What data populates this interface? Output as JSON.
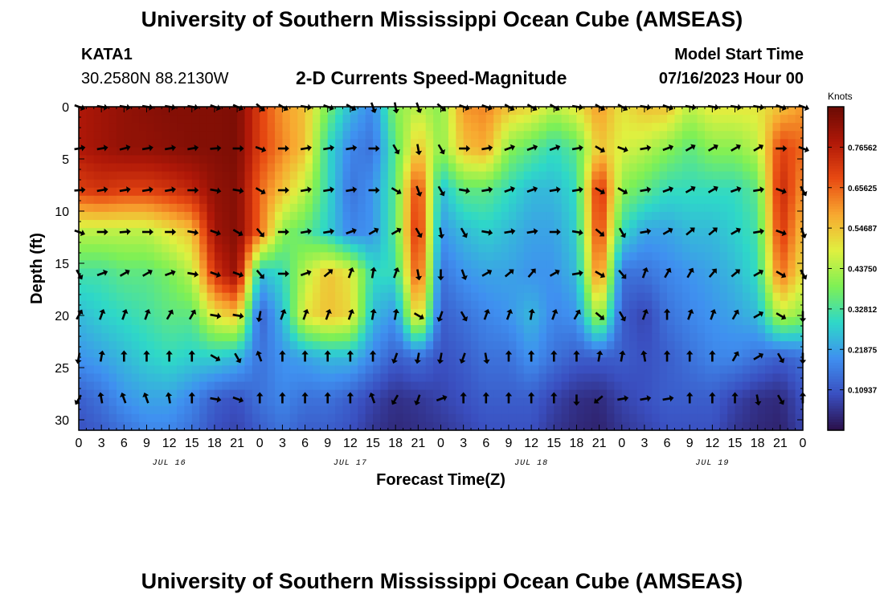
{
  "header": {
    "title": "University of Southern Mississippi Ocean Cube (AMSEAS)",
    "station_id": "KATA1",
    "station_coords": "30.2580N  88.2130W",
    "subtitle": "2-D Currents Speed-Magnitude",
    "model_start_label": "Model Start Time",
    "model_start_value": "07/16/2023 Hour 00"
  },
  "footer": {
    "title_repeat": "University of Southern Mississippi Ocean Cube (AMSEAS)"
  },
  "chart_data": {
    "type": "heatmap",
    "title": "2-D Currents Speed-Magnitude",
    "xlabel": "Forecast Time(Z)",
    "ylabel": "Depth (ft)",
    "x_hours_range": [
      0,
      96
    ],
    "y_depth_range_ft": [
      0,
      31
    ],
    "x_tick_labels": [
      "0",
      "3",
      "6",
      "9",
      "12",
      "15",
      "18",
      "21",
      "0",
      "3",
      "6",
      "9",
      "12",
      "15",
      "18",
      "21",
      "0",
      "3",
      "6",
      "9",
      "12",
      "15",
      "18",
      "21",
      "0",
      "3",
      "6",
      "9",
      "12",
      "15",
      "18",
      "21",
      "0"
    ],
    "y_ticks": [
      0,
      5,
      10,
      15,
      20,
      25,
      30
    ],
    "date_labels": [
      {
        "label": "JUL 16",
        "hour": 12
      },
      {
        "label": "JUL 17",
        "hour": 36
      },
      {
        "label": "JUL 18",
        "hour": 60
      },
      {
        "label": "JUL 19",
        "hour": 84
      }
    ],
    "colorbar": {
      "unit": "Knots",
      "range": [
        0.0,
        0.875
      ],
      "tick_values": [
        0.10937,
        0.21875,
        0.32812,
        0.4375,
        0.54687,
        0.65625,
        0.76562
      ],
      "tick_labels": [
        "0.10937",
        "0.21875",
        "0.32812",
        "0.43750",
        "0.54687",
        "0.65625",
        "0.76562"
      ],
      "colors": [
        "#2a0f4a",
        "#3a4fc0",
        "#3f90f0",
        "#2ed8c8",
        "#7ef055",
        "#e0f040",
        "#f8a830",
        "#e84a12",
        "#b01808",
        "#6a0a04"
      ]
    },
    "speed_keyframes_hour": [
      0,
      3,
      6,
      9,
      12,
      15,
      18,
      21,
      24,
      27,
      30,
      33,
      36,
      39,
      42,
      45,
      48,
      51,
      54,
      57,
      60,
      63,
      66,
      69,
      72,
      75,
      78,
      81,
      84,
      87,
      90,
      93,
      96
    ],
    "speed_keyframes_depth_ft": [
      0,
      4,
      8,
      12,
      16,
      20,
      24,
      28,
      31
    ],
    "speed_values_knots": [
      [
        0.78,
        0.8,
        0.82,
        0.83,
        0.84,
        0.84,
        0.84,
        0.85,
        0.7,
        0.6,
        0.55,
        0.38,
        0.25,
        0.18,
        0.4,
        0.45,
        0.4,
        0.6,
        0.62,
        0.55,
        0.52,
        0.45,
        0.5,
        0.6,
        0.5,
        0.55,
        0.55,
        0.45,
        0.5,
        0.5,
        0.5,
        0.55,
        0.6
      ],
      [
        0.78,
        0.8,
        0.82,
        0.82,
        0.83,
        0.84,
        0.84,
        0.85,
        0.7,
        0.62,
        0.55,
        0.3,
        0.18,
        0.15,
        0.35,
        0.55,
        0.4,
        0.55,
        0.58,
        0.4,
        0.35,
        0.3,
        0.35,
        0.55,
        0.48,
        0.45,
        0.4,
        0.35,
        0.4,
        0.4,
        0.45,
        0.7,
        0.65
      ],
      [
        0.7,
        0.72,
        0.7,
        0.7,
        0.72,
        0.75,
        0.82,
        0.84,
        0.65,
        0.55,
        0.45,
        0.3,
        0.15,
        0.2,
        0.35,
        0.72,
        0.25,
        0.35,
        0.35,
        0.3,
        0.25,
        0.25,
        0.3,
        0.75,
        0.4,
        0.35,
        0.3,
        0.3,
        0.3,
        0.3,
        0.35,
        0.75,
        0.6
      ],
      [
        0.45,
        0.45,
        0.45,
        0.45,
        0.5,
        0.55,
        0.8,
        0.84,
        0.65,
        0.4,
        0.35,
        0.28,
        0.18,
        0.2,
        0.35,
        0.75,
        0.2,
        0.25,
        0.28,
        0.25,
        0.22,
        0.22,
        0.28,
        0.72,
        0.3,
        0.22,
        0.22,
        0.25,
        0.25,
        0.28,
        0.32,
        0.72,
        0.55
      ],
      [
        0.32,
        0.32,
        0.35,
        0.35,
        0.38,
        0.45,
        0.72,
        0.82,
        0.25,
        0.3,
        0.45,
        0.55,
        0.5,
        0.3,
        0.3,
        0.7,
        0.15,
        0.2,
        0.22,
        0.22,
        0.2,
        0.2,
        0.25,
        0.65,
        0.15,
        0.15,
        0.18,
        0.2,
        0.22,
        0.25,
        0.3,
        0.65,
        0.5
      ],
      [
        0.25,
        0.28,
        0.3,
        0.32,
        0.35,
        0.35,
        0.5,
        0.55,
        0.12,
        0.25,
        0.5,
        0.55,
        0.52,
        0.25,
        0.2,
        0.55,
        0.12,
        0.15,
        0.18,
        0.2,
        0.25,
        0.18,
        0.2,
        0.45,
        0.12,
        0.08,
        0.15,
        0.18,
        0.2,
        0.22,
        0.25,
        0.45,
        0.4
      ],
      [
        0.2,
        0.22,
        0.25,
        0.28,
        0.3,
        0.28,
        0.28,
        0.25,
        0.15,
        0.2,
        0.22,
        0.25,
        0.25,
        0.18,
        0.12,
        0.15,
        0.1,
        0.12,
        0.15,
        0.15,
        0.2,
        0.15,
        0.12,
        0.12,
        0.12,
        0.1,
        0.12,
        0.15,
        0.18,
        0.18,
        0.15,
        0.12,
        0.15
      ],
      [
        0.12,
        0.15,
        0.2,
        0.22,
        0.22,
        0.18,
        0.12,
        0.1,
        0.15,
        0.18,
        0.15,
        0.15,
        0.12,
        0.08,
        0.05,
        0.06,
        0.08,
        0.1,
        0.12,
        0.12,
        0.12,
        0.08,
        0.05,
        0.04,
        0.08,
        0.1,
        0.12,
        0.12,
        0.12,
        0.08,
        0.05,
        0.04,
        0.1
      ],
      [
        0.1,
        0.12,
        0.15,
        0.18,
        0.18,
        0.15,
        0.1,
        0.08,
        0.12,
        0.15,
        0.12,
        0.12,
        0.1,
        0.06,
        0.04,
        0.05,
        0.06,
        0.08,
        0.1,
        0.1,
        0.1,
        0.06,
        0.04,
        0.03,
        0.06,
        0.08,
        0.1,
        0.1,
        0.1,
        0.06,
        0.04,
        0.03,
        0.08
      ]
    ],
    "arrow_depths_ft": [
      0,
      4,
      8,
      12,
      16,
      20,
      24,
      28
    ],
    "arrow_hours": [
      0,
      3,
      6,
      9,
      12,
      15,
      18,
      21,
      24,
      27,
      30,
      33,
      36,
      39,
      42,
      45,
      48,
      51,
      54,
      57,
      60,
      63,
      66,
      69,
      72,
      75,
      78,
      81,
      84,
      87,
      90,
      93,
      96
    ],
    "arrow_direction_deg_compass": [
      [
        110,
        100,
        100,
        100,
        100,
        100,
        110,
        115,
        130,
        120,
        100,
        110,
        120,
        160,
        170,
        160,
        130,
        110,
        110,
        120,
        120,
        120,
        100,
        120,
        120,
        100,
        110,
        100,
        100,
        100,
        100,
        110,
        110
      ],
      [
        80,
        80,
        75,
        80,
        80,
        80,
        85,
        90,
        110,
        90,
        80,
        80,
        80,
        90,
        150,
        170,
        150,
        90,
        80,
        70,
        70,
        70,
        80,
        120,
        110,
        80,
        70,
        60,
        60,
        60,
        60,
        90,
        110
      ],
      [
        85,
        80,
        80,
        80,
        80,
        90,
        100,
        100,
        120,
        90,
        80,
        80,
        80,
        90,
        120,
        160,
        150,
        100,
        80,
        70,
        70,
        80,
        80,
        120,
        120,
        80,
        70,
        60,
        60,
        70,
        80,
        110,
        150
      ],
      [
        110,
        90,
        85,
        90,
        90,
        100,
        110,
        120,
        140,
        90,
        80,
        80,
        70,
        60,
        60,
        150,
        170,
        150,
        100,
        80,
        80,
        90,
        100,
        130,
        150,
        80,
        60,
        50,
        50,
        60,
        80,
        110,
        160
      ],
      [
        150,
        70,
        60,
        60,
        70,
        100,
        110,
        110,
        140,
        90,
        70,
        50,
        20,
        10,
        20,
        170,
        180,
        160,
        60,
        50,
        40,
        60,
        80,
        120,
        140,
        20,
        30,
        30,
        40,
        50,
        60,
        120,
        150
      ],
      [
        30,
        20,
        20,
        20,
        30,
        30,
        100,
        100,
        190,
        20,
        20,
        20,
        20,
        10,
        10,
        120,
        200,
        150,
        20,
        20,
        10,
        20,
        30,
        130,
        150,
        20,
        0,
        20,
        20,
        30,
        60,
        120,
        180
      ],
      [
        190,
        10,
        0,
        0,
        0,
        0,
        120,
        150,
        340,
        0,
        0,
        0,
        0,
        0,
        200,
        190,
        190,
        200,
        170,
        0,
        0,
        0,
        0,
        10,
        10,
        350,
        0,
        0,
        0,
        30,
        60,
        150,
        180
      ],
      [
        210,
        350,
        340,
        340,
        350,
        0,
        100,
        110,
        0,
        0,
        0,
        0,
        0,
        340,
        210,
        200,
        70,
        0,
        0,
        0,
        0,
        0,
        180,
        230,
        80,
        80,
        80,
        0,
        0,
        0,
        170,
        150,
        0
      ]
    ]
  }
}
